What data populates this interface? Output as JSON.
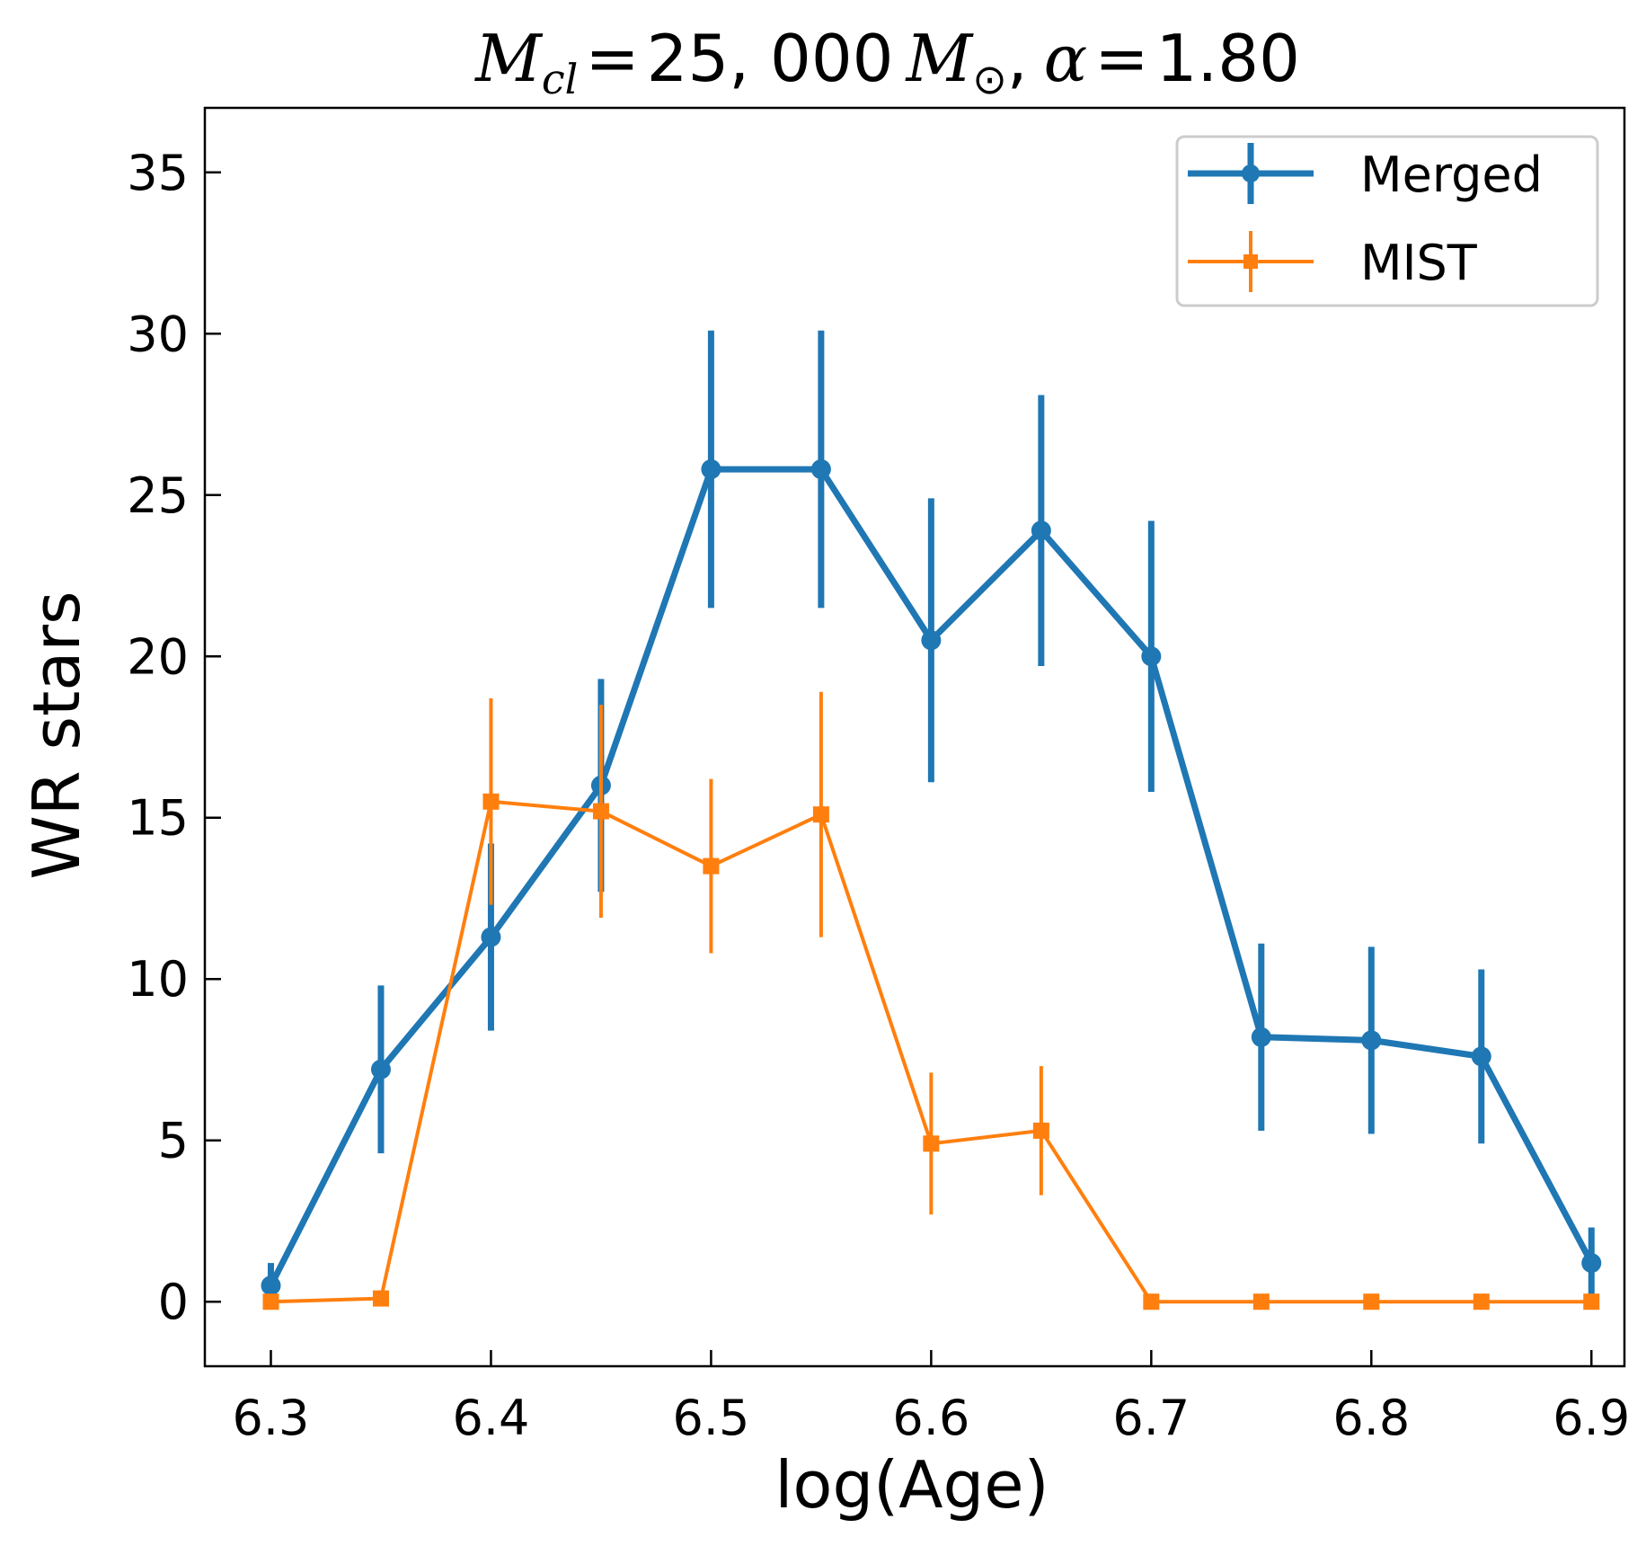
{
  "chart_data": {
    "type": "line",
    "title": {
      "lhs_symbol": "M",
      "lhs_subscript": "cl",
      "equals": "=",
      "mass_value": "25, 000",
      "mass_symbol": "M",
      "sun_symbol": "⊙",
      "separator": ",",
      "alpha_symbol": "α",
      "alpha_value": "1.80"
    },
    "xlabel": "log(Age)",
    "ylabel": "WR stars",
    "xlim": [
      6.27,
      6.915
    ],
    "ylim": [
      -2,
      37
    ],
    "x_ticks": [
      "6.3",
      "6.4",
      "6.5",
      "6.6",
      "6.7",
      "6.8",
      "6.9"
    ],
    "y_ticks": [
      "0",
      "5",
      "10",
      "15",
      "20",
      "25",
      "30",
      "35"
    ],
    "grid": false,
    "legend_position": "top-right",
    "colors": {
      "merged": "#1f77b4",
      "mist": "#ff7f0e"
    },
    "series": [
      {
        "name": "Merged",
        "marker": "circle",
        "x": [
          6.3,
          6.35,
          6.4,
          6.45,
          6.5,
          6.55,
          6.6,
          6.65,
          6.7,
          6.75,
          6.8,
          6.85,
          6.9
        ],
        "y": [
          0.5,
          7.2,
          11.3,
          16.0,
          25.8,
          25.8,
          20.5,
          23.9,
          20.0,
          8.2,
          8.1,
          7.6,
          1.2
        ],
        "yerr": [
          0.7,
          2.6,
          2.9,
          3.3,
          4.3,
          4.3,
          4.4,
          4.2,
          4.2,
          2.9,
          2.9,
          2.7,
          1.1
        ]
      },
      {
        "name": "MIST",
        "marker": "square",
        "x": [
          6.3,
          6.35,
          6.4,
          6.45,
          6.5,
          6.55,
          6.6,
          6.65,
          6.7,
          6.75,
          6.8,
          6.85,
          6.9
        ],
        "y": [
          0.0,
          0.1,
          15.5,
          15.2,
          13.5,
          15.1,
          4.9,
          5.3,
          0.0,
          0.0,
          0.0,
          0.0,
          0.0
        ],
        "yerr": [
          0,
          0,
          3.2,
          3.3,
          2.7,
          3.8,
          2.2,
          2.0,
          0,
          0,
          0,
          0,
          0
        ]
      }
    ]
  }
}
